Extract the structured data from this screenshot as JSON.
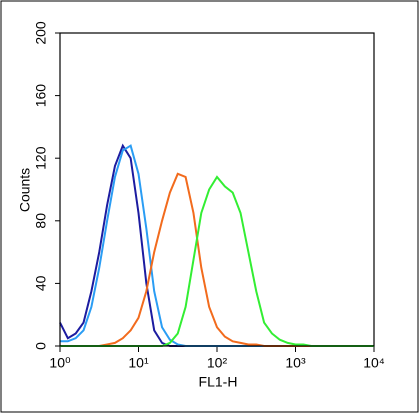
{
  "chart_data": {
    "type": "line",
    "x_label": "FL1-H",
    "y_label": "Counts",
    "log_x": true,
    "xlim": [
      1,
      10000
    ],
    "xticks": [
      {
        "value": 1,
        "label": "10⁰"
      },
      {
        "value": 10,
        "label": "10¹"
      },
      {
        "value": 100,
        "label": "10²"
      },
      {
        "value": 1000,
        "label": "10³"
      },
      {
        "value": 10000,
        "label": "10⁴"
      }
    ],
    "ylim": [
      0,
      200
    ],
    "yticks": [
      0,
      40,
      80,
      120,
      160,
      200
    ],
    "x": [
      1,
      1.259,
      1.585,
      1.995,
      2.512,
      3.162,
      3.981,
      5.012,
      6.31,
      7.943,
      10,
      12.59,
      15.85,
      19.95,
      25.12,
      31.62,
      39.81,
      50.12,
      63.1,
      79.43,
      100,
      125.9,
      158.5,
      199.5,
      251.2,
      316.2,
      398.1,
      501.2,
      631,
      794.3,
      1000,
      1259,
      1585,
      1995,
      2512,
      3162,
      3981,
      5012,
      6310,
      7943,
      10000
    ],
    "series": [
      {
        "color": "#1c1ca0",
        "values": [
          15,
          5,
          8,
          15,
          35,
          60,
          90,
          115,
          128,
          120,
          85,
          40,
          10,
          2,
          0,
          0,
          0,
          0,
          0,
          0,
          0,
          0,
          0,
          0,
          0,
          0,
          0,
          0,
          0,
          0,
          0,
          0,
          0,
          0,
          0,
          0,
          0,
          0,
          0,
          0,
          0
        ]
      },
      {
        "color": "#2a9df4",
        "values": [
          3,
          3,
          5,
          10,
          25,
          50,
          80,
          108,
          125,
          128,
          110,
          75,
          35,
          12,
          4,
          1,
          0,
          0,
          0,
          0,
          0,
          0,
          0,
          0,
          0,
          0,
          0,
          0,
          0,
          0,
          0,
          0,
          0,
          0,
          0,
          0,
          0,
          0,
          0,
          0,
          0
        ]
      },
      {
        "color": "#f26b1d",
        "values": [
          0,
          0,
          0,
          0,
          0,
          0,
          1,
          2,
          5,
          10,
          18,
          35,
          60,
          80,
          98,
          110,
          108,
          85,
          50,
          25,
          12,
          6,
          3,
          2,
          1,
          1,
          0,
          0,
          0,
          0,
          0,
          0,
          0,
          0,
          0,
          0,
          0,
          0,
          0,
          0,
          0
        ]
      },
      {
        "color": "#33ee33",
        "values": [
          0,
          0,
          0,
          0,
          0,
          0,
          0,
          0,
          0,
          0,
          0,
          0,
          0,
          0,
          2,
          8,
          25,
          55,
          85,
          100,
          108,
          102,
          98,
          85,
          60,
          35,
          15,
          8,
          4,
          2,
          1,
          1,
          0,
          0,
          0,
          0,
          0,
          0,
          0,
          0,
          0
        ]
      }
    ]
  }
}
